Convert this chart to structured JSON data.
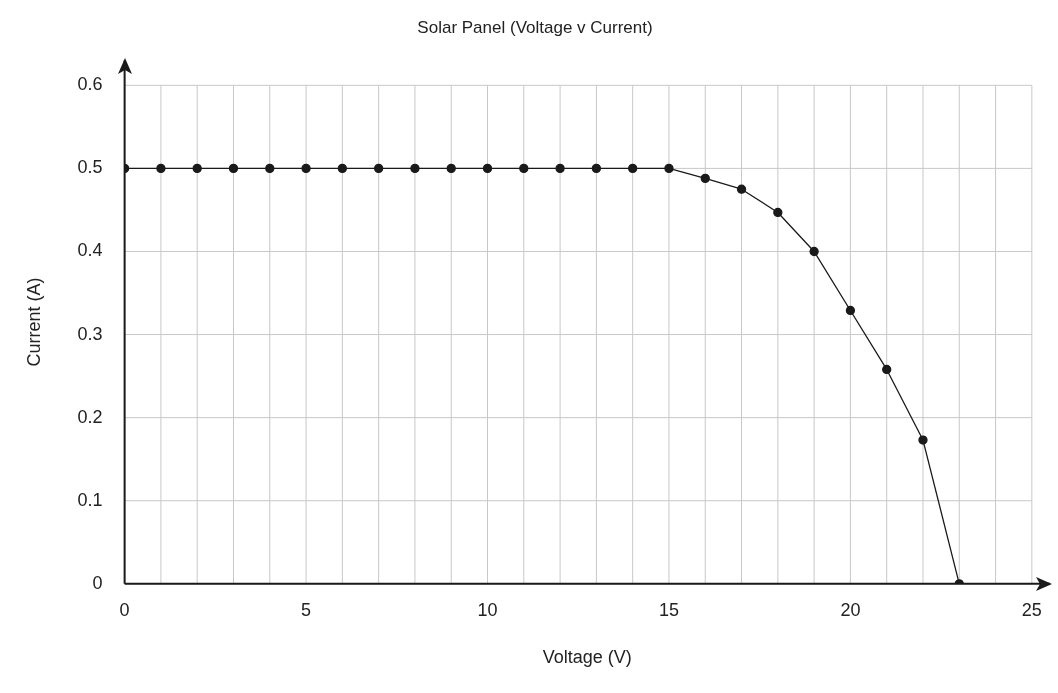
{
  "chart_data": {
    "type": "line",
    "title": "Solar Panel (Voltage v Current)",
    "xlabel": "Voltage (V)",
    "ylabel": "Current (A)",
    "x": [
      0,
      1,
      2,
      3,
      4,
      5,
      6,
      7,
      8,
      9,
      10,
      11,
      12,
      13,
      14,
      15,
      16,
      17,
      18,
      19,
      20,
      21,
      22,
      23
    ],
    "series": [
      {
        "color": "#1a1a1a",
        "values": [
          0.5,
          0.5,
          0.5,
          0.5,
          0.5,
          0.5,
          0.5,
          0.5,
          0.5,
          0.5,
          0.5,
          0.5,
          0.5,
          0.5,
          0.5,
          0.5,
          0.488,
          0.475,
          0.447,
          0.4,
          0.329,
          0.258,
          0.173,
          0
        ]
      }
    ],
    "xlim": [
      0,
      25.5
    ],
    "ylim": [
      0,
      0.63
    ],
    "xticks": [
      0,
      {
        "value": 1,
        "label": null
      },
      {
        "value": 2,
        "label": null
      },
      {
        "value": 3,
        "label": null
      },
      {
        "value": 4,
        "label": null
      },
      5,
      {
        "value": 6,
        "label": null
      },
      {
        "value": 7,
        "label": null
      },
      {
        "value": 8,
        "label": null
      },
      {
        "value": 9,
        "label": null
      },
      10,
      {
        "value": 11,
        "label": null
      },
      {
        "value": 12,
        "label": null
      },
      {
        "value": 13,
        "label": null
      },
      {
        "value": 14,
        "label": null
      },
      15,
      {
        "value": 16,
        "label": null
      },
      {
        "value": 17,
        "label": null
      },
      {
        "value": 18,
        "label": null
      },
      {
        "value": 19,
        "label": null
      },
      20,
      {
        "value": 21,
        "label": null
      },
      {
        "value": 22,
        "label": null
      },
      {
        "value": 23,
        "label": null
      },
      {
        "value": 24,
        "label": null
      },
      25
    ],
    "yticks": [
      0,
      0.1,
      0.2,
      0.3,
      0.4,
      0.5,
      0.6
    ],
    "grid": true,
    "marker": "circle",
    "line_style": "solid",
    "legend": false
  }
}
